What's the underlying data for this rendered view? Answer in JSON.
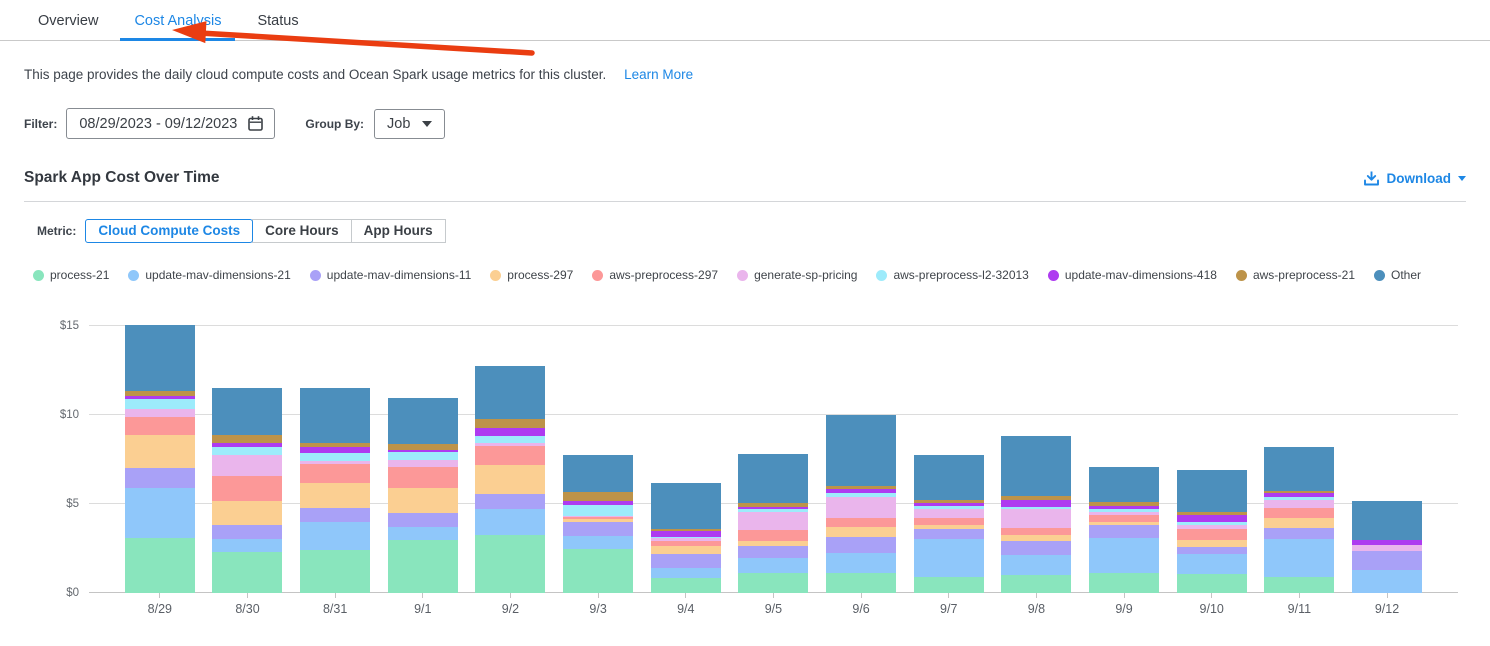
{
  "tabs": [
    {
      "label": "Overview",
      "active": false
    },
    {
      "label": "Cost Analysis",
      "active": true
    },
    {
      "label": "Status",
      "active": false
    }
  ],
  "annotation": {
    "type": "arrow",
    "color": "#ea3d11",
    "points_to": "Cost Analysis tab"
  },
  "description": {
    "text": "This page provides the daily cloud compute costs and Ocean Spark usage metrics for this cluster.",
    "link_label": "Learn More"
  },
  "filter": {
    "label": "Filter:",
    "date_range": "08/29/2023 - 09/12/2023",
    "group_by_label": "Group By:",
    "group_by_value": "Job"
  },
  "section": {
    "title": "Spark App Cost Over Time",
    "download_label": "Download"
  },
  "metric": {
    "label": "Metric:",
    "options": [
      {
        "label": "Cloud Compute Costs",
        "active": true
      },
      {
        "label": "Core Hours",
        "active": false
      },
      {
        "label": "App Hours",
        "active": false
      }
    ]
  },
  "colors": {
    "accent_blue": "#1d87e5",
    "arrow_red": "#ea3d11",
    "text_dark": "#3b4046",
    "grid_gray": "#dcdcdc"
  },
  "chart_data": {
    "type": "bar",
    "stacked": true,
    "title": "Spark App Cost Over Time",
    "xlabel": "",
    "ylabel": "",
    "ylim": [
      0,
      15
    ],
    "yticks": [
      0,
      5,
      10,
      15
    ],
    "ytick_labels": [
      "$0",
      "$5",
      "$10",
      "$15"
    ],
    "grid": true,
    "legend_position": "top",
    "categories": [
      "8/29",
      "8/30",
      "8/31",
      "9/1",
      "9/2",
      "9/3",
      "9/4",
      "9/5",
      "9/6",
      "9/7",
      "9/8",
      "9/9",
      "9/10",
      "9/11",
      "9/12"
    ],
    "series": [
      {
        "name": "process-21",
        "color": "#89e5bd",
        "values": [
          3.1,
          2.3,
          2.4,
          3.0,
          3.25,
          2.5,
          0.85,
          1.15,
          1.15,
          0.9,
          1.0,
          1.1,
          1.05,
          0.9,
          0.0
        ]
      },
      {
        "name": "update-mav-dimensions-21",
        "color": "#8fc7fa",
        "values": [
          2.8,
          0.75,
          1.6,
          0.7,
          1.45,
          0.7,
          0.55,
          0.8,
          1.1,
          2.15,
          1.15,
          2.0,
          1.15,
          2.15,
          1.3
        ]
      },
      {
        "name": "update-mav-dimensions-11",
        "color": "#a9a1f7",
        "values": [
          1.1,
          0.75,
          0.8,
          0.8,
          0.85,
          0.8,
          0.8,
          0.7,
          0.9,
          0.55,
          0.8,
          0.7,
          0.4,
          0.6,
          1.05
        ]
      },
      {
        "name": "process-297",
        "color": "#fbcf92",
        "values": [
          1.9,
          1.35,
          1.4,
          1.4,
          1.65,
          0.15,
          0.45,
          0.25,
          0.55,
          0.2,
          0.3,
          0.2,
          0.4,
          0.55,
          0.0
        ]
      },
      {
        "name": "aws-preprocess-297",
        "color": "#fc9898",
        "values": [
          1.0,
          1.45,
          1.05,
          1.2,
          1.05,
          0.15,
          0.3,
          0.65,
          0.5,
          0.4,
          0.4,
          0.4,
          0.6,
          0.55,
          0.0
        ]
      },
      {
        "name": "generate-sp-pricing",
        "color": "#eab5ec",
        "values": [
          0.45,
          1.15,
          0.15,
          0.4,
          0.2,
          0.05,
          0.15,
          1.0,
          1.2,
          0.55,
          1.05,
          0.15,
          0.25,
          0.5,
          0.35
        ]
      },
      {
        "name": "aws-preprocess-l2-32013",
        "color": "#9debfb",
        "values": [
          0.55,
          0.45,
          0.45,
          0.4,
          0.4,
          0.6,
          0.05,
          0.15,
          0.2,
          0.15,
          0.15,
          0.15,
          0.15,
          0.15,
          0.0
        ]
      },
      {
        "name": "update-mav-dimensions-418",
        "color": "#ae3bf0",
        "values": [
          0.15,
          0.25,
          0.35,
          0.15,
          0.45,
          0.2,
          0.35,
          0.15,
          0.25,
          0.15,
          0.4,
          0.2,
          0.4,
          0.2,
          0.3
        ]
      },
      {
        "name": "aws-preprocess-21",
        "color": "#bd9349",
        "values": [
          0.3,
          0.45,
          0.25,
          0.3,
          0.5,
          0.55,
          0.1,
          0.2,
          0.15,
          0.2,
          0.2,
          0.2,
          0.15,
          0.15,
          0.0
        ]
      },
      {
        "name": "Other",
        "color": "#4c8fbc",
        "values": [
          3.7,
          2.6,
          3.05,
          2.6,
          2.95,
          2.05,
          2.6,
          2.75,
          4.0,
          2.5,
          3.35,
          2.0,
          2.35,
          2.45,
          2.15
        ]
      }
    ]
  }
}
